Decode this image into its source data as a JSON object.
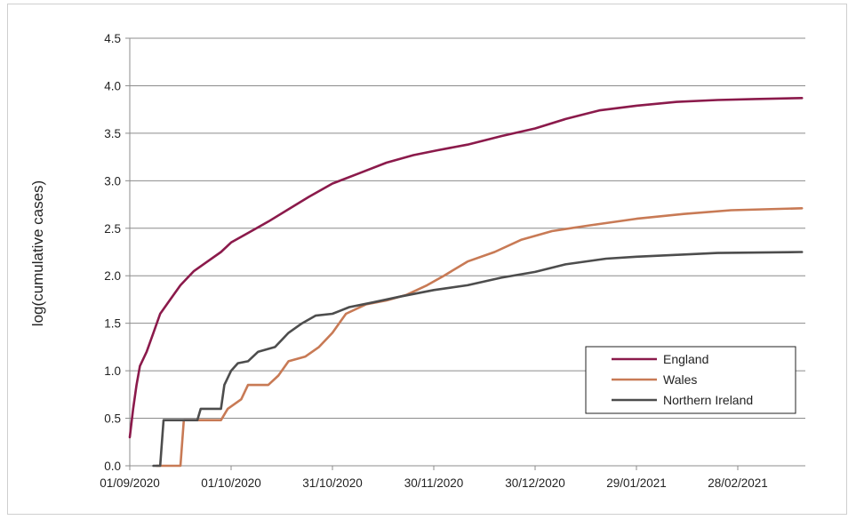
{
  "chart_data": {
    "type": "line",
    "title": "",
    "xlabel": "",
    "ylabel": "log(cumulative cases)",
    "ylim": [
      0,
      4.5
    ],
    "y_ticks": [
      "0.0",
      "0.5",
      "1.0",
      "1.5",
      "2.0",
      "2.5",
      "3.0",
      "3.5",
      "4.0",
      "4.5"
    ],
    "x_ticks": [
      "01/09/2020",
      "01/10/2020",
      "31/10/2020",
      "30/11/2020",
      "30/12/2020",
      "29/01/2021",
      "28/02/2021"
    ],
    "xlim": [
      "2020-09-01",
      "2021-03-20"
    ],
    "grid": "horizontal",
    "legend_position": "bottom-right",
    "series": [
      {
        "name": "England",
        "color": "#8b1a4b",
        "points": [
          [
            "2020-09-01",
            0.3
          ],
          [
            "2020-09-02",
            0.6
          ],
          [
            "2020-09-03",
            0.85
          ],
          [
            "2020-09-04",
            1.05
          ],
          [
            "2020-09-06",
            1.2
          ],
          [
            "2020-09-08",
            1.4
          ],
          [
            "2020-09-10",
            1.6
          ],
          [
            "2020-09-13",
            1.75
          ],
          [
            "2020-09-16",
            1.9
          ],
          [
            "2020-09-20",
            2.05
          ],
          [
            "2020-09-24",
            2.15
          ],
          [
            "2020-09-28",
            2.25
          ],
          [
            "2020-10-01",
            2.35
          ],
          [
            "2020-10-06",
            2.45
          ],
          [
            "2020-10-12",
            2.57
          ],
          [
            "2020-10-18",
            2.7
          ],
          [
            "2020-10-24",
            2.83
          ],
          [
            "2020-10-31",
            2.97
          ],
          [
            "2020-11-08",
            3.08
          ],
          [
            "2020-11-16",
            3.19
          ],
          [
            "2020-11-24",
            3.27
          ],
          [
            "2020-12-01",
            3.32
          ],
          [
            "2020-12-10",
            3.38
          ],
          [
            "2020-12-20",
            3.47
          ],
          [
            "2020-12-30",
            3.55
          ],
          [
            "2021-01-08",
            3.65
          ],
          [
            "2021-01-18",
            3.74
          ],
          [
            "2021-01-29",
            3.79
          ],
          [
            "2021-02-10",
            3.83
          ],
          [
            "2021-02-22",
            3.85
          ],
          [
            "2021-03-05",
            3.86
          ],
          [
            "2021-03-19",
            3.87
          ]
        ]
      },
      {
        "name": "Wales",
        "color": "#c87a55",
        "points": [
          [
            "2020-09-09",
            0.0
          ],
          [
            "2020-09-16",
            0.0
          ],
          [
            "2020-09-17",
            0.48
          ],
          [
            "2020-09-28",
            0.48
          ],
          [
            "2020-09-30",
            0.6
          ],
          [
            "2020-10-04",
            0.7
          ],
          [
            "2020-10-06",
            0.85
          ],
          [
            "2020-10-12",
            0.85
          ],
          [
            "2020-10-15",
            0.95
          ],
          [
            "2020-10-18",
            1.1
          ],
          [
            "2020-10-23",
            1.15
          ],
          [
            "2020-10-27",
            1.25
          ],
          [
            "2020-10-31",
            1.4
          ],
          [
            "2020-11-04",
            1.6
          ],
          [
            "2020-11-10",
            1.7
          ],
          [
            "2020-11-16",
            1.74
          ],
          [
            "2020-11-22",
            1.8
          ],
          [
            "2020-11-28",
            1.9
          ],
          [
            "2020-12-03",
            2.0
          ],
          [
            "2020-12-10",
            2.15
          ],
          [
            "2020-12-18",
            2.25
          ],
          [
            "2020-12-26",
            2.38
          ],
          [
            "2021-01-04",
            2.47
          ],
          [
            "2021-01-15",
            2.53
          ],
          [
            "2021-01-29",
            2.6
          ],
          [
            "2021-02-12",
            2.65
          ],
          [
            "2021-02-26",
            2.69
          ],
          [
            "2021-03-19",
            2.71
          ]
        ]
      },
      {
        "name": "Northern Ireland",
        "color": "#4d4d4d",
        "points": [
          [
            "2020-09-08",
            0.0
          ],
          [
            "2020-09-10",
            0.0
          ],
          [
            "2020-09-11",
            0.48
          ],
          [
            "2020-09-21",
            0.48
          ],
          [
            "2020-09-22",
            0.6
          ],
          [
            "2020-09-28",
            0.6
          ],
          [
            "2020-09-29",
            0.85
          ],
          [
            "2020-10-01",
            1.0
          ],
          [
            "2020-10-03",
            1.08
          ],
          [
            "2020-10-06",
            1.1
          ],
          [
            "2020-10-09",
            1.2
          ],
          [
            "2020-10-14",
            1.25
          ],
          [
            "2020-10-18",
            1.4
          ],
          [
            "2020-10-22",
            1.5
          ],
          [
            "2020-10-26",
            1.58
          ],
          [
            "2020-10-31",
            1.6
          ],
          [
            "2020-11-05",
            1.67
          ],
          [
            "2020-11-12",
            1.72
          ],
          [
            "2020-11-20",
            1.78
          ],
          [
            "2020-11-30",
            1.85
          ],
          [
            "2020-12-10",
            1.9
          ],
          [
            "2020-12-20",
            1.98
          ],
          [
            "2020-12-30",
            2.04
          ],
          [
            "2021-01-08",
            2.12
          ],
          [
            "2021-01-20",
            2.18
          ],
          [
            "2021-01-29",
            2.2
          ],
          [
            "2021-02-10",
            2.22
          ],
          [
            "2021-02-22",
            2.24
          ],
          [
            "2021-03-19",
            2.25
          ]
        ]
      }
    ]
  }
}
